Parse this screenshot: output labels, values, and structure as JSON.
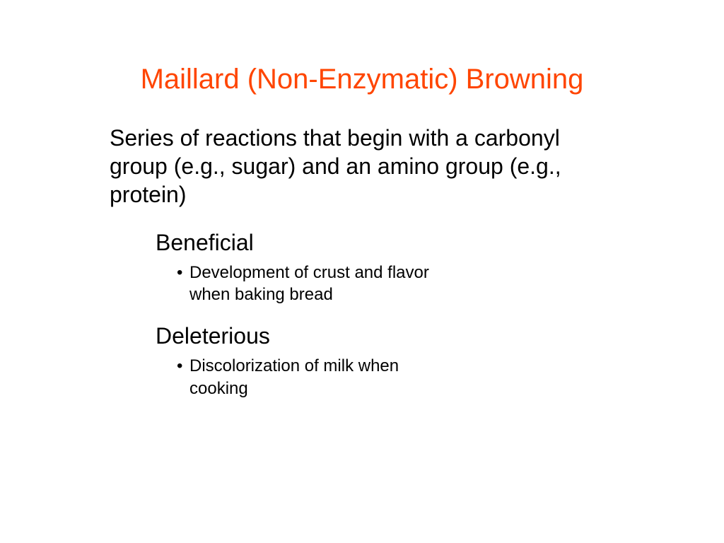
{
  "slide": {
    "title": "Maillard (Non-Enzymatic) Browning",
    "description": "Series of reactions that begin with a carbonyl group (e.g., sugar) and an amino group (e.g., protein)",
    "sections": [
      {
        "heading": "Beneficial",
        "bullet_line1": "Development of crust and flavor",
        "bullet_line2": "when baking bread"
      },
      {
        "heading": "Deleterious",
        "bullet_line1": "Discolorization of milk when",
        "bullet_line2": "cooking"
      }
    ]
  },
  "styling": {
    "background_color": "#ffffff",
    "title_color": "#ff4500",
    "title_fontsize": 40,
    "body_color": "#000000",
    "description_fontsize": 32,
    "heading_fontsize": 32,
    "bullet_fontsize": 24,
    "font_family": "Arial"
  }
}
